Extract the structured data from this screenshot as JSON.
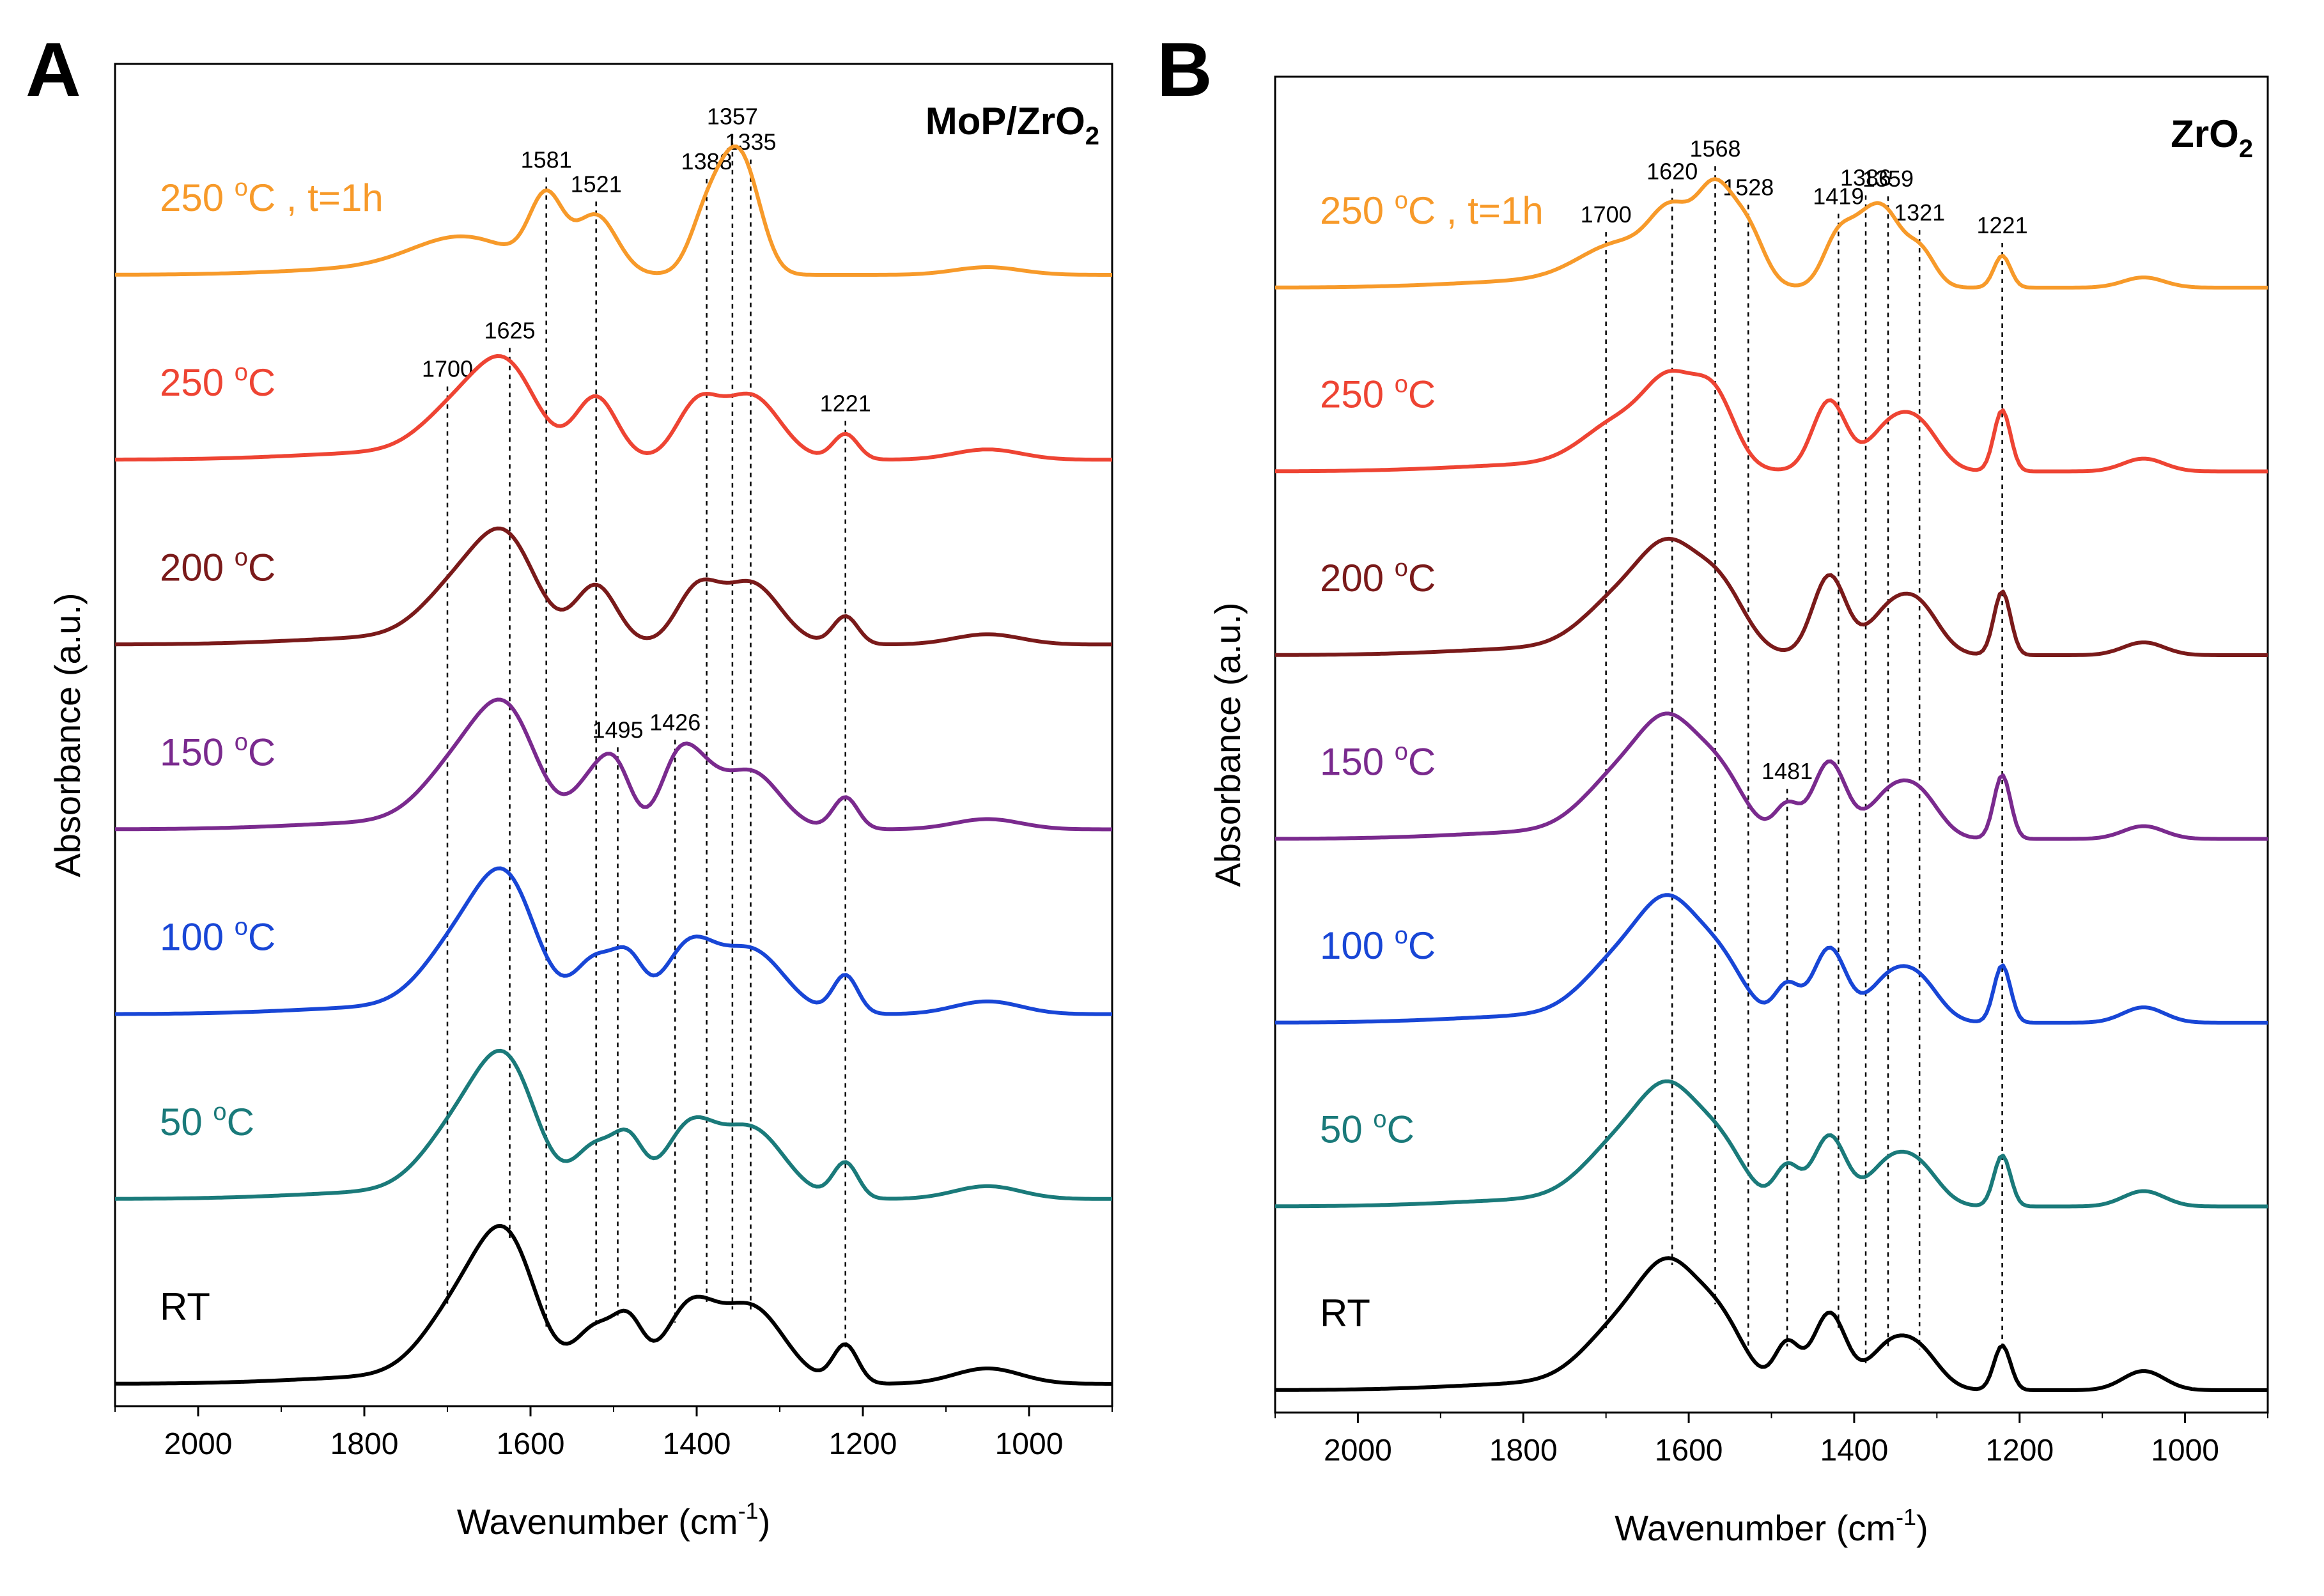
{
  "chart_data": [
    {
      "type": "line",
      "panel_letter": "A",
      "title": "MoP/ZrO",
      "title_subscript": "2",
      "xlabel": "Wavenumber (cm",
      "xlabel_sup": "-1",
      "xlabel_end": ")",
      "ylabel": "Absorbance (a.u.)",
      "xlim": [
        2100,
        900
      ],
      "xticks": [
        2000,
        1800,
        1600,
        1400,
        1200,
        1000
      ],
      "yaxis_ticks": false,
      "series": [
        {
          "name": "RT",
          "label": "RT",
          "sup": "",
          "color": "#000000",
          "baseline": 0.0,
          "peaks": [
            [
              1680,
              0.58,
              45
            ],
            [
              1625,
              0.88,
              35
            ],
            [
              1521,
              0.42,
              25
            ],
            [
              1481,
              0.4,
              18
            ],
            [
              1410,
              0.55,
              30
            ],
            [
              1335,
              0.6,
              40
            ],
            [
              1221,
              0.3,
              15
            ],
            [
              1050,
              0.12,
              40
            ]
          ]
        },
        {
          "name": "50 °C",
          "label": "50 ",
          "sup": "o",
          "label_end": "C",
          "color": "#1a7a7a",
          "baseline": 1.0,
          "peaks": [
            [
              1680,
              0.55,
              45
            ],
            [
              1625,
              0.82,
              35
            ],
            [
              1521,
              0.4,
              25
            ],
            [
              1481,
              0.38,
              18
            ],
            [
              1410,
              0.52,
              30
            ],
            [
              1335,
              0.55,
              40
            ],
            [
              1221,
              0.28,
              15
            ],
            [
              1050,
              0.1,
              40
            ]
          ]
        },
        {
          "name": "100 °C",
          "label": "100 ",
          "sup": "o",
          "label_end": "C",
          "color": "#1846d6",
          "baseline": 2.0,
          "peaks": [
            [
              1680,
              0.55,
              45
            ],
            [
              1625,
              0.8,
              35
            ],
            [
              1521,
              0.42,
              25
            ],
            [
              1481,
              0.35,
              18
            ],
            [
              1410,
              0.5,
              30
            ],
            [
              1335,
              0.5,
              40
            ],
            [
              1221,
              0.3,
              15
            ],
            [
              1050,
              0.1,
              40
            ]
          ]
        },
        {
          "name": "150 °C",
          "label": "150 ",
          "sup": "o",
          "label_end": "C",
          "color": "#7a2a8e",
          "baseline": 3.0,
          "peaks": [
            [
              1680,
              0.5,
              45
            ],
            [
              1625,
              0.7,
              35
            ],
            [
              1521,
              0.4,
              25
            ],
            [
              1495,
              0.3,
              18
            ],
            [
              1426,
              0.35,
              20
            ],
            [
              1400,
              0.4,
              25
            ],
            [
              1335,
              0.45,
              35
            ],
            [
              1221,
              0.25,
              15
            ],
            [
              1050,
              0.08,
              40
            ]
          ]
        },
        {
          "name": "200 °C",
          "label": "200 ",
          "sup": "o",
          "label_end": "C",
          "color": "#7a1a1a",
          "baseline": 4.0,
          "peaks": [
            [
              1680,
              0.45,
              45
            ],
            [
              1625,
              0.62,
              35
            ],
            [
              1521,
              0.45,
              25
            ],
            [
              1400,
              0.4,
              25
            ],
            [
              1335,
              0.48,
              35
            ],
            [
              1221,
              0.22,
              15
            ],
            [
              1050,
              0.08,
              40
            ]
          ]
        },
        {
          "name": "250 °C",
          "label": "250 ",
          "sup": "o",
          "label_end": "C",
          "color": "#ee4433",
          "baseline": 5.0,
          "peaks": [
            [
              1680,
              0.4,
              45
            ],
            [
              1625,
              0.55,
              35
            ],
            [
              1521,
              0.48,
              25
            ],
            [
              1400,
              0.4,
              25
            ],
            [
              1335,
              0.5,
              35
            ],
            [
              1221,
              0.2,
              15
            ],
            [
              1050,
              0.08,
              40
            ]
          ]
        },
        {
          "name": "250 °C, t=1h",
          "label": "250 ",
          "sup": "o",
          "label_end": "C , t=1h",
          "color": "#f79a2a",
          "baseline": 6.0,
          "peaks": [
            [
              1680,
              0.25,
              60
            ],
            [
              1581,
              0.55,
              20
            ],
            [
              1521,
              0.45,
              25
            ],
            [
              1388,
              0.45,
              20
            ],
            [
              1357,
              0.62,
              20
            ],
            [
              1335,
              0.45,
              20
            ],
            [
              1050,
              0.06,
              40
            ]
          ]
        }
      ],
      "reference_lines": [
        {
          "x": 1700,
          "label": "1700",
          "top_series": 5
        },
        {
          "x": 1625,
          "label": "1625",
          "top_series": 5
        },
        {
          "x": 1581,
          "label": "1581",
          "top_series": 6
        },
        {
          "x": 1521,
          "label": "1521",
          "top_series": 6
        },
        {
          "x": 1495,
          "label": "1495",
          "top_series": 3
        },
        {
          "x": 1426,
          "label": "1426",
          "top_series": 3
        },
        {
          "x": 1388,
          "label": "1388",
          "top_series": 6
        },
        {
          "x": 1357,
          "label": "1357",
          "top_series": 6
        },
        {
          "x": 1335,
          "label": "1335",
          "top_series": 6
        },
        {
          "x": 1221,
          "label": "1221",
          "top_series": 5
        }
      ]
    },
    {
      "type": "line",
      "panel_letter": "B",
      "title": "ZrO",
      "title_subscript": "2",
      "xlabel": "Wavenumber (cm",
      "xlabel_sup": "-1",
      "xlabel_end": ")",
      "ylabel": "Absorbance (a.u.)",
      "xlim": [
        2100,
        900
      ],
      "xticks": [
        2000,
        1800,
        1600,
        1400,
        1200,
        1000
      ],
      "yaxis_ticks": false,
      "series": [
        {
          "name": "RT",
          "label": "RT",
          "sup": "",
          "color": "#000000",
          "baseline": 0.0,
          "peaks": [
            [
              1680,
              0.45,
              45
            ],
            [
              1620,
              0.75,
              35
            ],
            [
              1560,
              0.45,
              30
            ],
            [
              1481,
              0.35,
              15
            ],
            [
              1430,
              0.6,
              20
            ],
            [
              1360,
              0.3,
              25
            ],
            [
              1321,
              0.28,
              25
            ],
            [
              1221,
              0.35,
              10
            ],
            [
              1050,
              0.15,
              25
            ]
          ]
        },
        {
          "name": "50 °C",
          "label": "50 ",
          "sup": "o",
          "label_end": "C",
          "color": "#1a7a7a",
          "baseline": 1.0,
          "peaks": [
            [
              1680,
              0.45,
              45
            ],
            [
              1620,
              0.7,
              35
            ],
            [
              1560,
              0.4,
              30
            ],
            [
              1481,
              0.3,
              15
            ],
            [
              1430,
              0.55,
              20
            ],
            [
              1360,
              0.3,
              25
            ],
            [
              1321,
              0.28,
              25
            ],
            [
              1221,
              0.4,
              10
            ],
            [
              1050,
              0.12,
              25
            ]
          ]
        },
        {
          "name": "100 °C",
          "label": "100 ",
          "sup": "o",
          "label_end": "C",
          "color": "#1846d6",
          "baseline": 2.0,
          "peaks": [
            [
              1680,
              0.45,
              45
            ],
            [
              1620,
              0.72,
              35
            ],
            [
              1560,
              0.4,
              30
            ],
            [
              1481,
              0.28,
              15
            ],
            [
              1430,
              0.58,
              20
            ],
            [
              1360,
              0.3,
              25
            ],
            [
              1321,
              0.3,
              25
            ],
            [
              1221,
              0.45,
              10
            ],
            [
              1050,
              0.12,
              25
            ]
          ]
        },
        {
          "name": "150 °C",
          "label": "150 ",
          "sup": "o",
          "label_end": "C",
          "color": "#7a2a8e",
          "baseline": 3.0,
          "peaks": [
            [
              1680,
              0.45,
              45
            ],
            [
              1620,
              0.7,
              35
            ],
            [
              1560,
              0.42,
              30
            ],
            [
              1481,
              0.25,
              15
            ],
            [
              1430,
              0.6,
              20
            ],
            [
              1360,
              0.3,
              25
            ],
            [
              1321,
              0.32,
              25
            ],
            [
              1221,
              0.5,
              10
            ],
            [
              1050,
              0.1,
              25
            ]
          ]
        },
        {
          "name": "200 °C",
          "label": "200 ",
          "sup": "o",
          "label_end": "C",
          "color": "#7a1a1a",
          "baseline": 4.0,
          "peaks": [
            [
              1680,
              0.4,
              45
            ],
            [
              1620,
              0.65,
              35
            ],
            [
              1560,
              0.45,
              30
            ],
            [
              1430,
              0.62,
              20
            ],
            [
              1360,
              0.3,
              25
            ],
            [
              1321,
              0.35,
              25
            ],
            [
              1221,
              0.5,
              10
            ],
            [
              1050,
              0.1,
              25
            ]
          ]
        },
        {
          "name": "250 °C",
          "label": "250 ",
          "sup": "o",
          "label_end": "C",
          "color": "#ee4433",
          "baseline": 5.0,
          "peaks": [
            [
              1680,
              0.35,
              45
            ],
            [
              1620,
              0.55,
              30
            ],
            [
              1568,
              0.52,
              25
            ],
            [
              1430,
              0.55,
              20
            ],
            [
              1360,
              0.3,
              25
            ],
            [
              1321,
              0.33,
              25
            ],
            [
              1221,
              0.48,
              10
            ],
            [
              1050,
              0.1,
              25
            ]
          ]
        },
        {
          "name": "250 °C, t=1h",
          "label": "250 ",
          "sup": "o",
          "label_end": "C , t=1h",
          "color": "#f79a2a",
          "baseline": 6.0,
          "peaks": [
            [
              1680,
              0.3,
              50
            ],
            [
              1620,
              0.45,
              25
            ],
            [
              1568,
              0.7,
              22
            ],
            [
              1528,
              0.4,
              20
            ],
            [
              1419,
              0.4,
              18
            ],
            [
              1386,
              0.4,
              18
            ],
            [
              1359,
              0.45,
              18
            ],
            [
              1321,
              0.3,
              18
            ],
            [
              1221,
              0.25,
              10
            ],
            [
              1050,
              0.08,
              25
            ]
          ]
        }
      ],
      "reference_lines": [
        {
          "x": 1700,
          "label": "1700",
          "top_series": 6
        },
        {
          "x": 1620,
          "label": "1620",
          "top_series": 6
        },
        {
          "x": 1568,
          "label": "1568",
          "top_series": 6
        },
        {
          "x": 1528,
          "label": "1528",
          "top_series": 6
        },
        {
          "x": 1481,
          "label": "1481",
          "top_series": 3
        },
        {
          "x": 1419,
          "label": "1419",
          "top_series": 6
        },
        {
          "x": 1386,
          "label": "1386",
          "top_series": 6
        },
        {
          "x": 1359,
          "label": "1359",
          "top_series": 6
        },
        {
          "x": 1321,
          "label": "1321",
          "top_series": 6
        },
        {
          "x": 1221,
          "label": "1221",
          "top_series": 6
        }
      ]
    }
  ]
}
